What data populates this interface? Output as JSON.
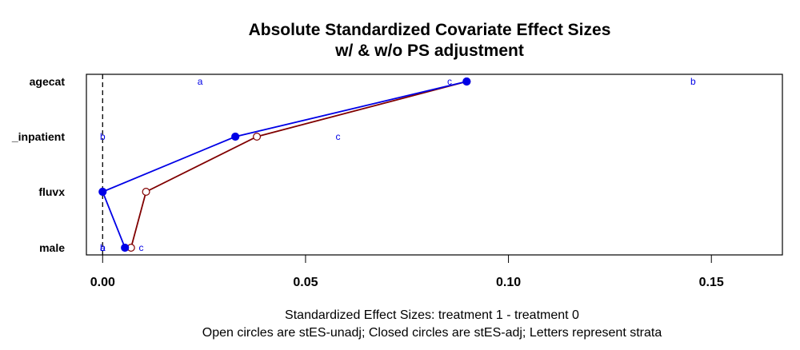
{
  "chart_data": {
    "type": "line",
    "title_line1": "Absolute Standardized Covariate Effect Sizes",
    "title_line2": "w/ & w/o PS adjustment",
    "xlabel_line1": "Standardized Effect Sizes: treatment 1 - treatment  0",
    "xlabel_line2": "Open circles are stES-unadj; Closed circles are stES-adj; Letters represent strata",
    "categories": [
      "male",
      "fluvx",
      "_inpatient",
      "agecat"
    ],
    "xlim": [
      -0.004,
      0.1675
    ],
    "x_ticks": [
      0.0,
      0.05,
      0.1,
      0.15
    ],
    "x_tick_labels": [
      "0.00",
      "0.05",
      "0.10",
      "0.15"
    ],
    "reference_line_x": 0,
    "series": [
      {
        "values": [
          0.0055,
          0.0,
          0.0327,
          0.0897
        ],
        "marker": "closed",
        "color": "#0000e6"
      },
      {
        "values": [
          0.007,
          0.0107,
          0.038,
          0.0897
        ],
        "marker": "open",
        "color": "#800000"
      }
    ],
    "strata_letters": [
      {
        "category": "agecat",
        "letter": "a",
        "x": 0.024
      },
      {
        "category": "agecat",
        "letter": "c",
        "x": 0.0855
      },
      {
        "category": "agecat",
        "letter": "b",
        "x": 0.1455
      },
      {
        "category": "_inpatient",
        "letter": "b",
        "x": 0.0
      },
      {
        "category": "_inpatient",
        "letter": "c",
        "x": 0.058
      },
      {
        "category": "fluvx",
        "letter": "b",
        "x": 0.0
      },
      {
        "category": "male",
        "letter": "a",
        "x": 0.0
      },
      {
        "category": "male",
        "letter": "b",
        "x": 0.0
      },
      {
        "category": "male",
        "letter": "c",
        "x": 0.0095
      }
    ],
    "letter_color": "#0000e6"
  }
}
